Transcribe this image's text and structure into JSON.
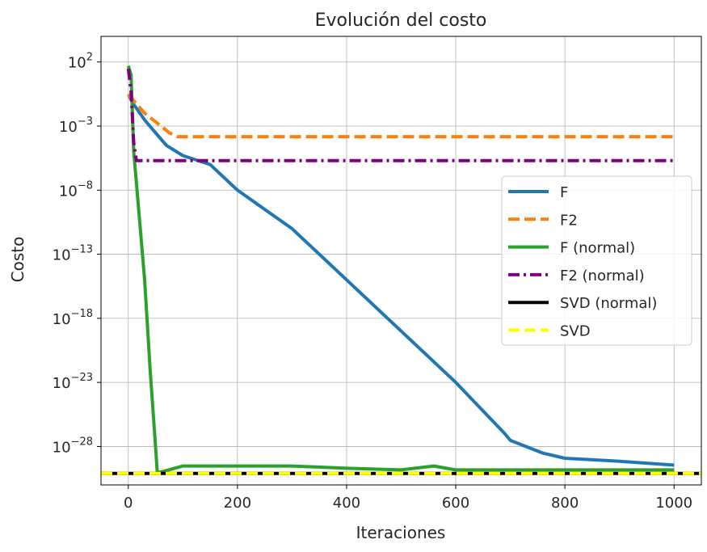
{
  "chart_data": {
    "type": "line",
    "title": "Evolución del costo",
    "xlabel": "Iteraciones",
    "ylabel": "Costo",
    "y_scale": "log",
    "grid": true,
    "legend_placement": "center-right",
    "xlim": [
      -50,
      1050
    ],
    "ylim": [
      1e-31,
      10000.0
    ],
    "xticks": [
      {
        "value": 0,
        "label": "0"
      },
      {
        "value": 200,
        "label": "200"
      },
      {
        "value": 400,
        "label": "400"
      },
      {
        "value": 600,
        "label": "600"
      },
      {
        "value": 800,
        "label": "800"
      },
      {
        "value": 1000,
        "label": "1000"
      }
    ],
    "yticks": [
      {
        "value": 100.0,
        "label": "10^2",
        "base": "10",
        "exp": "2"
      },
      {
        "value": 0.001,
        "label": "10^-3",
        "base": "10",
        "exp": "−3"
      },
      {
        "value": 1e-08,
        "label": "10^-8",
        "base": "10",
        "exp": "−8"
      },
      {
        "value": 1e-13,
        "label": "10^-13",
        "base": "10",
        "exp": "−13"
      },
      {
        "value": 1e-18,
        "label": "10^-18",
        "base": "10",
        "exp": "−18"
      },
      {
        "value": 1e-23,
        "label": "10^-23",
        "base": "10",
        "exp": "−23"
      },
      {
        "value": 1e-28,
        "label": "10^-28",
        "base": "10",
        "exp": "−28"
      }
    ],
    "series": [
      {
        "name": "F",
        "color": "#1f77b4",
        "style": "solid",
        "points": [
          [
            0,
            0.3
          ],
          [
            10,
            0.05
          ],
          [
            30,
            0.003
          ],
          [
            50,
            0.0003
          ],
          [
            70,
            3e-05
          ],
          [
            100,
            5e-06
          ],
          [
            150,
            1e-06
          ],
          [
            200,
            1e-08
          ],
          [
            300,
            1e-11
          ],
          [
            400,
            1e-15
          ],
          [
            500,
            1e-19
          ],
          [
            600,
            1e-23
          ],
          [
            690,
            1e-27
          ],
          [
            700,
            3e-28
          ],
          [
            760,
            3e-29
          ],
          [
            800,
            1.2e-29
          ],
          [
            900,
            7e-30
          ],
          [
            950,
            5e-30
          ],
          [
            1000,
            3.5e-30
          ]
        ]
      },
      {
        "name": "F2",
        "color": "#ff7f0e",
        "style": "dashed",
        "points": [
          [
            0,
            0.3
          ],
          [
            30,
            0.01
          ],
          [
            60,
            0.001
          ],
          [
            75,
            0.0003
          ],
          [
            90,
            0.00015
          ],
          [
            1000,
            0.00015
          ]
        ]
      },
      {
        "name": "F (normal)",
        "color": "#2ca02c",
        "style": "solid",
        "points": [
          [
            0,
            50
          ],
          [
            5,
            10
          ],
          [
            10,
            1e-05
          ],
          [
            20,
            1e-10
          ],
          [
            30,
            1e-15
          ],
          [
            40,
            1e-22
          ],
          [
            50,
            1e-28
          ],
          [
            53,
            1e-30
          ],
          [
            60,
            1e-30
          ],
          [
            100,
            3e-30
          ],
          [
            200,
            3e-30
          ],
          [
            300,
            3e-30
          ],
          [
            400,
            2e-30
          ],
          [
            500,
            1.5e-30
          ],
          [
            560,
            3e-30
          ],
          [
            600,
            1.5e-30
          ],
          [
            700,
            1.5e-30
          ],
          [
            800,
            1.5e-30
          ],
          [
            900,
            1.5e-30
          ],
          [
            1000,
            1.5e-30
          ]
        ]
      },
      {
        "name": "F2 (normal)",
        "color": "#800080",
        "style": "dashdot",
        "points": [
          [
            0,
            30
          ],
          [
            5,
            0.5
          ],
          [
            10,
            5e-05
          ],
          [
            15,
            2e-06
          ],
          [
            1000,
            2e-06
          ]
        ]
      },
      {
        "name": "SVD (normal)",
        "color": "#000000",
        "style": "solid",
        "points": [
          [
            -50,
            8e-31
          ],
          [
            1050,
            8e-31
          ]
        ]
      },
      {
        "name": "SVD",
        "color": "#ffff00",
        "style": "dashed",
        "points": [
          [
            -50,
            8e-31
          ],
          [
            1050,
            8e-31
          ]
        ]
      }
    ]
  }
}
